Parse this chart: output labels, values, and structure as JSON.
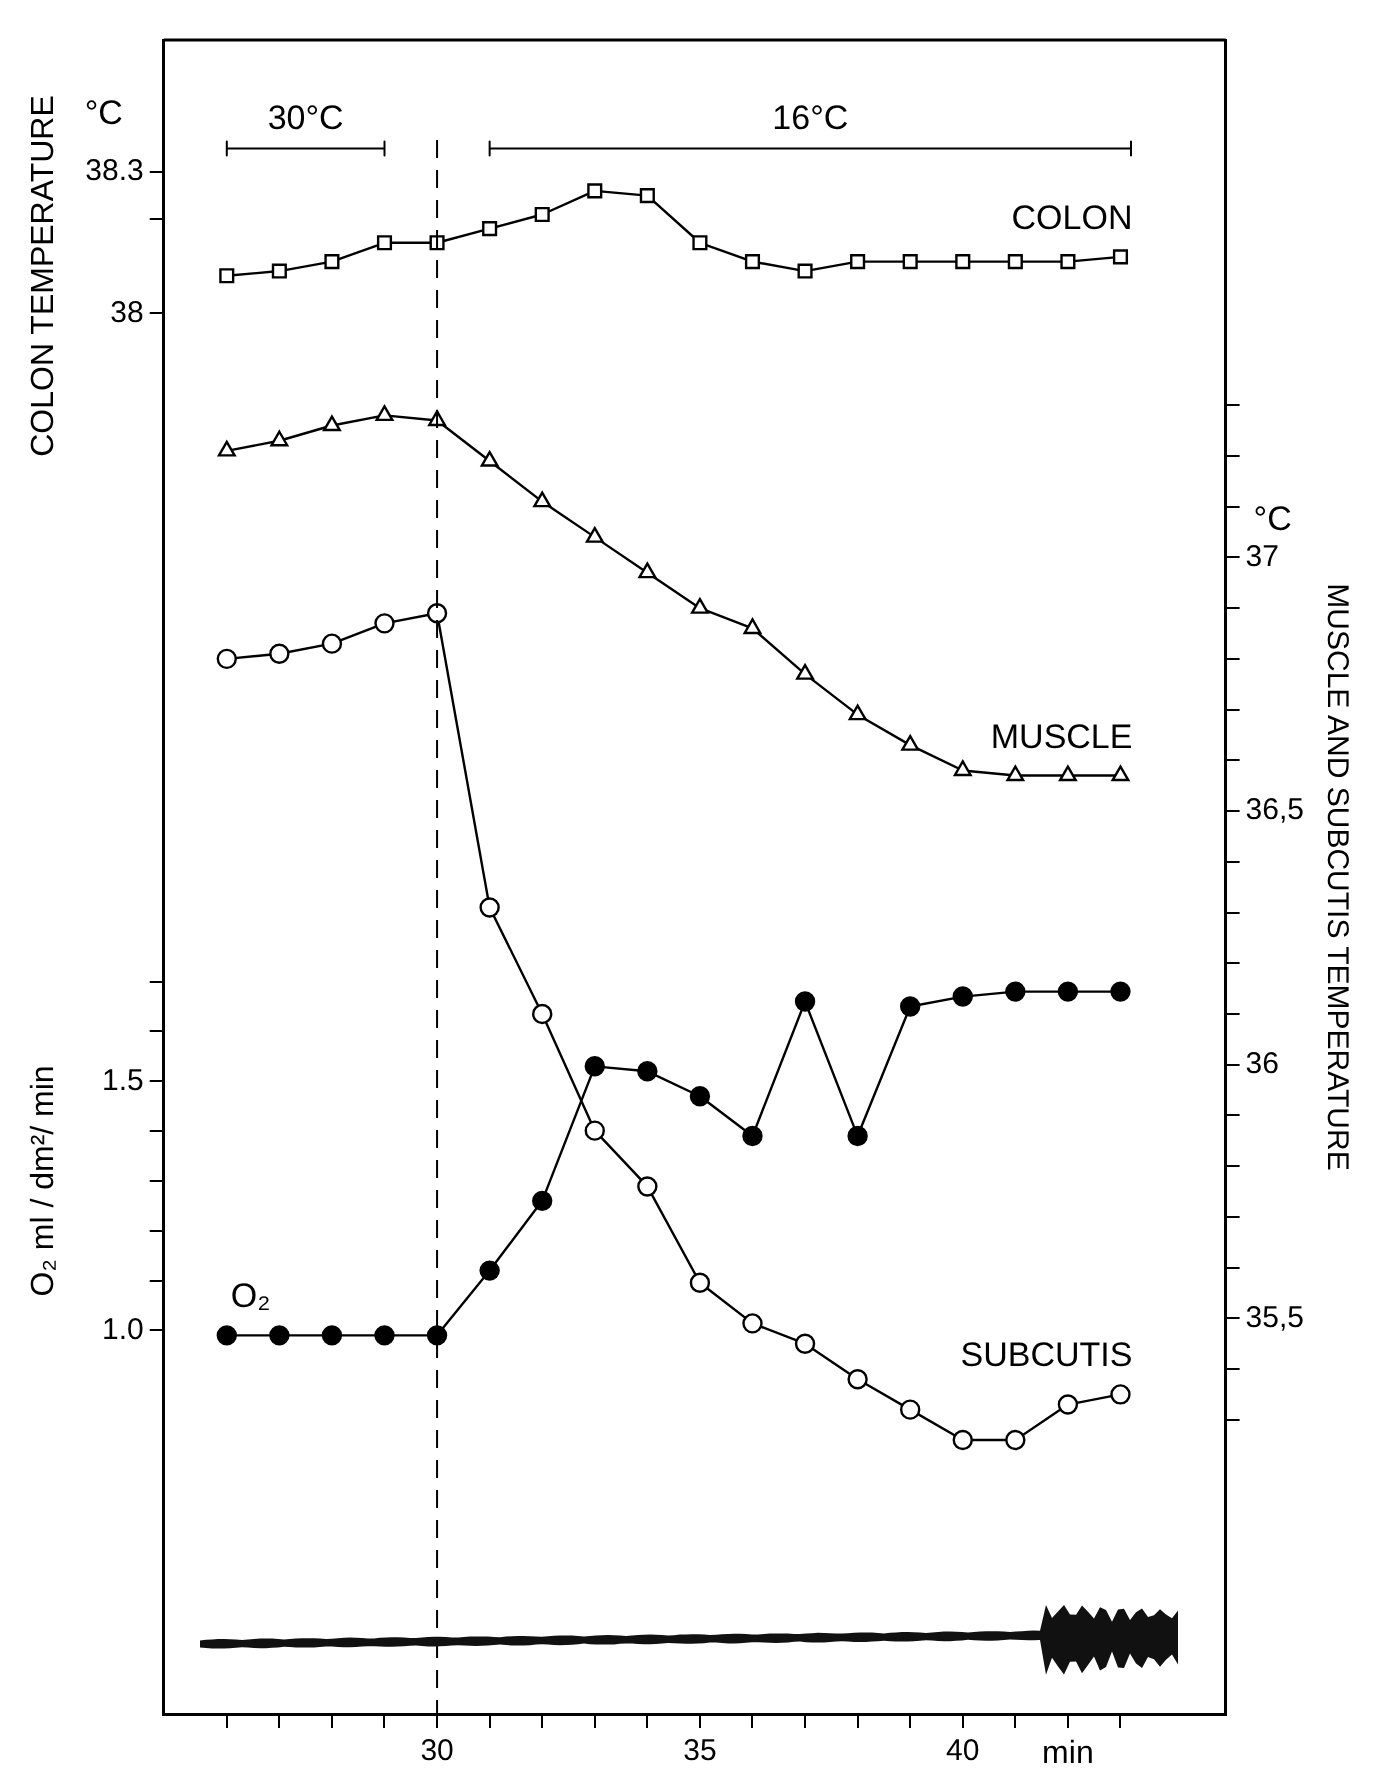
{
  "chart_data": {
    "type": "line",
    "xlabel": "min",
    "ylabel": "COLON TEMPERATURE",
    "y2label": "MUSCLE AND SUBCUTIS TEMPERATURE",
    "y3label": "O₂ ml / dm²/ min",
    "xlim": [
      24.8,
      45
    ],
    "xticks": [
      {
        "value": 26,
        "label": null
      },
      {
        "value": 27,
        "label": null
      },
      {
        "value": 28,
        "label": null
      },
      {
        "value": 29,
        "label": null
      },
      30,
      {
        "value": 31,
        "label": null
      },
      {
        "value": 32,
        "label": null
      },
      {
        "value": 33,
        "label": null
      },
      {
        "value": 34,
        "label": null
      },
      35,
      {
        "value": 36,
        "label": null
      },
      {
        "value": 37,
        "label": null
      },
      {
        "value": 38,
        "label": null
      },
      {
        "value": 39,
        "label": null
      },
      40,
      {
        "value": 41,
        "label": null
      },
      {
        "value": 42,
        "label": null
      },
      {
        "value": 43,
        "label": null
      }
    ],
    "ylim": [
      35.03,
      38.58
    ],
    "yticks": [
      38,
      {
        "value": 38.2,
        "label": null
      },
      38.3
    ],
    "y2lim": [
      34.72,
      38.02
    ],
    "y2ticks": [
      {
        "value": 35.3,
        "label": null
      },
      {
        "value": 35.4,
        "label": null
      },
      {
        "value": 35.5,
        "label": "35,5"
      },
      {
        "value": 35.6,
        "label": null
      },
      {
        "value": 35.7,
        "label": null
      },
      {
        "value": 35.8,
        "label": null
      },
      {
        "value": 35.9,
        "label": null
      },
      36,
      {
        "value": 36.1,
        "label": null
      },
      {
        "value": 36.2,
        "label": null
      },
      {
        "value": 36.3,
        "label": null
      },
      {
        "value": 36.4,
        "label": null
      },
      {
        "value": 36.5,
        "label": "36,5"
      },
      {
        "value": 36.6,
        "label": null
      },
      {
        "value": 36.7,
        "label": null
      },
      {
        "value": 36.8,
        "label": null
      },
      {
        "value": 36.9,
        "label": null
      },
      37,
      {
        "value": 37.1,
        "label": null
      },
      {
        "value": 37.2,
        "label": null
      },
      {
        "value": 37.3,
        "label": null
      }
    ],
    "y3lim": [
      0.23,
      3.59
    ],
    "y3ticks": [
      {
        "value": 1,
        "label": "1.0"
      },
      {
        "value": 1.1,
        "label": null
      },
      {
        "value": 1.2,
        "label": null
      },
      {
        "value": 1.3,
        "label": null
      },
      {
        "value": 1.4,
        "label": null
      },
      1.5,
      {
        "value": 1.6,
        "label": null
      },
      {
        "value": 1.7,
        "label": null
      }
    ],
    "x": [
      26,
      27,
      28,
      29,
      30,
      31,
      32,
      33,
      34,
      35,
      36,
      37,
      38,
      39,
      40,
      41,
      42,
      43
    ],
    "series": [
      {
        "name": "COLON",
        "color": "#000000",
        "marker": "square",
        "values": [
          38.08,
          38.09,
          38.11,
          38.15,
          38.15,
          38.18,
          38.21,
          38.26,
          38.25,
          38.15,
          38.11,
          38.09,
          38.11,
          38.11,
          38.11,
          38.11,
          38.11,
          38.12
        ]
      },
      {
        "name": "MUSCLE",
        "color": "#000000",
        "marker": "triangle",
        "axis": "y2",
        "values": [
          37.21,
          37.23,
          37.26,
          37.28,
          37.27,
          37.19,
          37.11,
          37.04,
          36.97,
          36.9,
          36.86,
          36.77,
          36.69,
          36.63,
          36.58,
          36.57,
          36.57,
          36.57
        ]
      },
      {
        "name": "SUBCUTIS",
        "color": "#000000",
        "marker": "circle",
        "axis": "y2",
        "values": [
          36.8,
          36.81,
          36.83,
          36.87,
          36.89,
          36.31,
          36.1,
          35.87,
          35.76,
          35.57,
          35.49,
          35.45,
          35.38,
          35.32,
          35.26,
          35.26,
          35.33,
          35.35
        ]
      },
      {
        "name": "O₂",
        "color": "#000000",
        "marker": "circle",
        "axis": "y3",
        "values": [
          0.99,
          0.99,
          0.99,
          0.99,
          0.99,
          1.12,
          1.26,
          1.53,
          1.52,
          1.47,
          1.39,
          1.66,
          1.39,
          1.65,
          1.67,
          1.68,
          1.68,
          1.68
        ]
      },
      {
        "type": "line",
        "color": "#000000",
        "marker": "none",
        "x": [
          26,
          26,
          26,
          29,
          29,
          29,
          30,
          31,
          31,
          31,
          43.2,
          43.2,
          43.2
        ],
        "values": [
          38.365,
          38.335,
          38.35,
          38.35,
          38.365,
          38.335,
          null,
          38.365,
          38.335,
          38.35,
          38.35,
          38.365,
          38.335
        ]
      }
    ],
    "ref_lines": [
      {
        "axis": "x",
        "value": 30,
        "line_style": "dashed"
      }
    ],
    "annotations": [
      "°C",
      "°C",
      "30°C",
      "16°C"
    ],
    "grid": false,
    "legend": false
  }
}
